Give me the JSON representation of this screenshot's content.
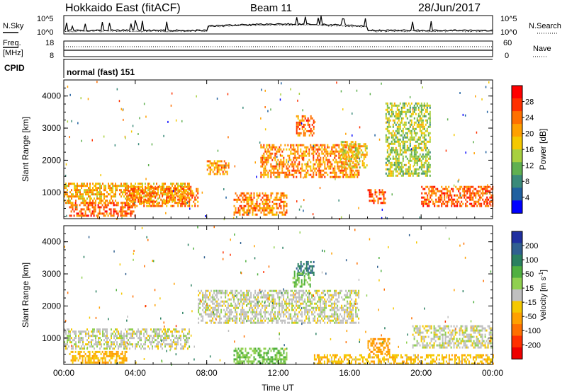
{
  "header": {
    "radar": "Hokkaido East (fitACF)",
    "beam": "Beam 11",
    "date": "28/Jun/2017"
  },
  "noise_panel": {
    "left_label": "N.Sky",
    "right_label": "N.Search",
    "left_ticks": [
      "10^5",
      "10^0"
    ],
    "right_ticks": [
      "10^5",
      "10^0"
    ]
  },
  "freq_panel": {
    "left_label_line1": "Freq.",
    "left_label_line2": "[MHz]",
    "right_label": "Nave",
    "left_ticks": [
      "18",
      "8"
    ],
    "right_ticks": [
      "60",
      "0"
    ]
  },
  "cpid_panel": {
    "label": "CPID",
    "text": "normal (fast) 151"
  },
  "chart_data": [
    {
      "type": "heatmap",
      "name": "power",
      "ylabel": "Slant Range [km]",
      "yticks": [
        "4000",
        "3000",
        "2000",
        "1000"
      ],
      "ylim": [
        180,
        4500
      ],
      "xlim_hours": [
        0,
        24
      ],
      "colorbar_label": "Power [dB]",
      "colorbar_ticks": [
        "28",
        "24",
        "20",
        "16",
        "12",
        "8",
        "4"
      ],
      "colorbar_colors": [
        "#ff0000",
        "#ff3000",
        "#ff7000",
        "#ffa000",
        "#f5c800",
        "#a8d040",
        "#60b050",
        "#3a8a7a",
        "#2060a0",
        "#0000ff"
      ],
      "echo_regions": [
        {
          "t0": 0.0,
          "t1": 7.0,
          "r0": 700,
          "r1": 1300,
          "power_db": 20
        },
        {
          "t0": 0.3,
          "t1": 4.0,
          "r0": 300,
          "r1": 700,
          "power_db": 26
        },
        {
          "t0": 3.5,
          "t1": 7.5,
          "r0": 600,
          "r1": 1200,
          "power_db": 24
        },
        {
          "t0": 8.0,
          "t1": 9.2,
          "r0": 1600,
          "r1": 2000,
          "power_db": 22
        },
        {
          "t0": 9.5,
          "t1": 12.5,
          "r0": 300,
          "r1": 1000,
          "power_db": 24
        },
        {
          "t0": 11.0,
          "t1": 16.5,
          "r0": 1500,
          "r1": 2500,
          "power_db": 23
        },
        {
          "t0": 13.0,
          "t1": 14.0,
          "r0": 2800,
          "r1": 3400,
          "power_db": 25
        },
        {
          "t0": 15.5,
          "t1": 17.0,
          "r0": 1800,
          "r1": 2600,
          "power_db": 18
        },
        {
          "t0": 17.0,
          "t1": 18.0,
          "r0": 700,
          "r1": 1100,
          "power_db": 28
        },
        {
          "t0": 18.0,
          "t1": 20.5,
          "r0": 1500,
          "r1": 3800,
          "power_db": 14
        },
        {
          "t0": 20.0,
          "t1": 24.0,
          "r0": 600,
          "r1": 1200,
          "power_db": 26
        }
      ]
    },
    {
      "type": "heatmap",
      "name": "velocity",
      "ylabel": "Slant Range [km]",
      "yticks": [
        "4000",
        "3000",
        "2000",
        "1000"
      ],
      "ylim": [
        180,
        4500
      ],
      "xlim_hours": [
        0,
        24
      ],
      "xticks": [
        "00:00",
        "04:00",
        "08:00",
        "12:00",
        "16:00",
        "20:00",
        "00:00"
      ],
      "xlabel": "Time UT",
      "colorbar_label": "Velocity [m s^-1]",
      "colorbar_ticks": [
        "200",
        "100",
        "50",
        "15",
        "-15",
        "-50",
        "-100",
        "-200"
      ],
      "colorbar_colors": [
        "#2030a0",
        "#306090",
        "#2a8060",
        "#50b040",
        "#90d050",
        "#c0c0c0",
        "#f5c800",
        "#ffa000",
        "#ff7000",
        "#ff3000",
        "#ee0000"
      ],
      "echo_regions": [
        {
          "t0": 0.0,
          "t1": 7.0,
          "r0": 700,
          "r1": 1300,
          "velocity": 0
        },
        {
          "t0": 0.3,
          "t1": 3.5,
          "r0": 250,
          "r1": 600,
          "velocity": -40
        },
        {
          "t0": 7.5,
          "t1": 16.5,
          "r0": 1500,
          "r1": 2500,
          "velocity": 0
        },
        {
          "t0": 9.5,
          "t1": 12.5,
          "r0": 200,
          "r1": 700,
          "velocity": 40
        },
        {
          "t0": 13.0,
          "t1": 14.0,
          "r0": 3000,
          "r1": 3400,
          "velocity": 120
        },
        {
          "t0": 12.8,
          "t1": 13.8,
          "r0": 2600,
          "r1": 3100,
          "velocity": 40
        },
        {
          "t0": 17.0,
          "t1": 18.2,
          "r0": 500,
          "r1": 1000,
          "velocity": -60
        },
        {
          "t0": 19.5,
          "t1": 24.0,
          "r0": 700,
          "r1": 1400,
          "velocity": 0
        },
        {
          "t0": 14.0,
          "t1": 24.0,
          "r0": 200,
          "r1": 500,
          "velocity": -30
        }
      ]
    }
  ]
}
